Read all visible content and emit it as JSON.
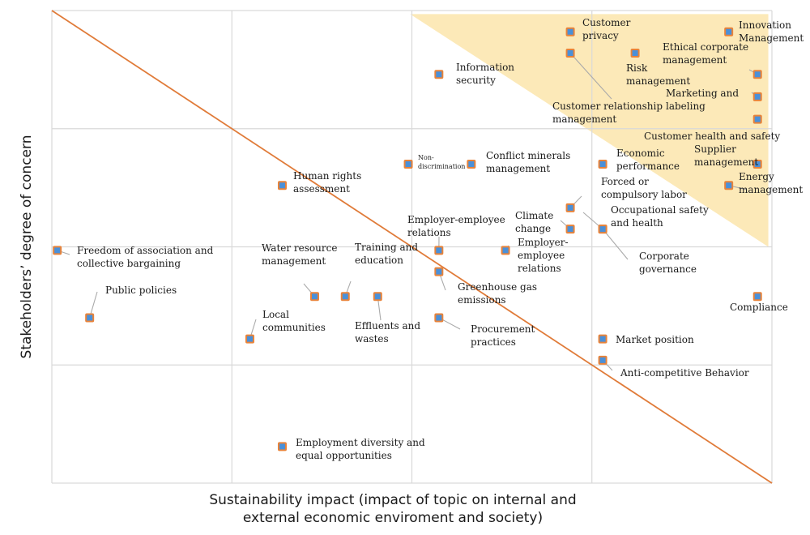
{
  "chart_data": {
    "type": "scatter",
    "title": "",
    "xlabel": [
      "Sustainability impact (impact of topic on internal and",
      "external economic enviroment and society)"
    ],
    "ylabel": "Stakeholders’ degree of concern",
    "xlim": [
      0,
      4
    ],
    "ylim": [
      0,
      4
    ],
    "grid": true,
    "trend_line": [
      [
        0,
        4
      ],
      [
        4,
        0
      ]
    ],
    "colors": {
      "marker_fill": "#4a90d9",
      "marker_border": "#e8833a",
      "trend_line": "#e07b39",
      "highlight": "#fce9b8",
      "grid": "#d9d9d9",
      "leader": "#aaaaaa"
    },
    "highlight_region": [
      [
        1.99,
        3.97
      ],
      [
        3.98,
        3.97
      ],
      [
        3.98,
        2.0
      ]
    ],
    "points": [
      {
        "label": "Customer privacy",
        "x": 2.88,
        "y": 3.82
      },
      {
        "label": "Innovation Management",
        "x": 3.76,
        "y": 3.82
      },
      {
        "label": "Ethical corporate management",
        "x": 3.92,
        "y": 3.46
      },
      {
        "label": "Risk management",
        "x": 3.24,
        "y": 3.64
      },
      {
        "label": "Customer relationship management",
        "x": 2.88,
        "y": 3.64
      },
      {
        "label": "Information security",
        "x": 2.15,
        "y": 3.46
      },
      {
        "label": "Marketing and labeling",
        "x": 3.92,
        "y": 3.27
      },
      {
        "label": "Customer health and safety",
        "x": 3.92,
        "y": 3.08
      },
      {
        "label": "Supplier management",
        "x": 3.92,
        "y": 2.7
      },
      {
        "label": "Energy management",
        "x": 3.76,
        "y": 2.52
      },
      {
        "label": "Non-discrimination",
        "x": 1.98,
        "y": 2.7
      },
      {
        "label": "Conflict minerals management",
        "x": 2.33,
        "y": 2.7
      },
      {
        "label": "Economic performance",
        "x": 3.06,
        "y": 2.7
      },
      {
        "label": "Human rights assessment",
        "x": 1.28,
        "y": 2.52
      },
      {
        "label": "Forced or compulsory labor",
        "x": 2.88,
        "y": 2.33
      },
      {
        "label": "Climate change",
        "x": 2.88,
        "y": 2.15
      },
      {
        "label": "Occupational safety and health",
        "x": 3.06,
        "y": 2.15
      },
      {
        "label": "Corporate governance",
        "x": 3.06,
        "y": 2.15
      },
      {
        "label": "Freedom of association and collective bargaining",
        "x": 0.03,
        "y": 1.97
      },
      {
        "label": "Employer-employee relations",
        "x": 2.15,
        "y": 1.97
      },
      {
        "label": "Employer-employee relations",
        "x": 2.52,
        "y": 1.97
      },
      {
        "label": "Greenhouse gas emissions",
        "x": 2.15,
        "y": 1.79
      },
      {
        "label": "Water resource management",
        "x": 1.46,
        "y": 1.58
      },
      {
        "label": "Training and education",
        "x": 1.63,
        "y": 1.58
      },
      {
        "label": "Effluents and wastes",
        "x": 1.81,
        "y": 1.58
      },
      {
        "label": "Public policies",
        "x": 0.21,
        "y": 1.4
      },
      {
        "label": "Procurement practices",
        "x": 2.15,
        "y": 1.4
      },
      {
        "label": "Compliance",
        "x": 3.92,
        "y": 1.58
      },
      {
        "label": "Local communities",
        "x": 1.1,
        "y": 1.22
      },
      {
        "label": "Market position",
        "x": 3.06,
        "y": 1.22
      },
      {
        "label": "Anti-competitive Behavior",
        "x": 3.06,
        "y": 1.04
      },
      {
        "label": "Employment diversity and equal opportunities",
        "x": 1.28,
        "y": 0.31
      }
    ],
    "labels": [
      {
        "lines": [
          "Customer",
          "privacy"
        ]
      },
      {
        "lines": [
          "Innovation",
          "Management"
        ]
      },
      {
        "lines": [
          "Ethical corporate",
          "management"
        ]
      },
      {
        "lines": [
          "Risk",
          "management"
        ]
      },
      {
        "lines": [
          "Customer relationship",
          "management"
        ]
      },
      {
        "lines": [
          "Information",
          "security"
        ]
      },
      {
        "lines": [
          "Marketing and",
          "labeling"
        ]
      },
      {
        "lines": [
          "Customer health and safety"
        ]
      },
      {
        "lines": [
          "Supplier",
          "management"
        ]
      },
      {
        "lines": [
          "Energy",
          "management"
        ]
      },
      {
        "lines": [
          "Non-",
          "discrimination"
        ]
      },
      {
        "lines": [
          "Conflict minerals",
          "management"
        ]
      },
      {
        "lines": [
          "Economic",
          "performance"
        ]
      },
      {
        "lines": [
          "Human rights",
          "assessment"
        ]
      },
      {
        "lines": [
          "Forced or",
          "compulsory labor"
        ]
      },
      {
        "lines": [
          "Climate",
          "change"
        ]
      },
      {
        "lines": [
          "Occupational safety",
          "and health"
        ]
      },
      {
        "lines": [
          "Corporate",
          "governance"
        ]
      },
      {
        "lines": [
          "Freedom of association and",
          "collective bargaining"
        ]
      },
      {
        "lines": [
          "Employer-employee",
          "relations"
        ]
      },
      {
        "lines": [
          "Employer-",
          "employee",
          "relations"
        ]
      },
      {
        "lines": [
          "Greenhouse gas",
          "emissions"
        ]
      },
      {
        "lines": [
          "Water resource",
          "management"
        ]
      },
      {
        "lines": [
          "Training and",
          "education"
        ]
      },
      {
        "lines": [
          "Effluents and",
          "wastes"
        ]
      },
      {
        "lines": [
          "Public policies"
        ]
      },
      {
        "lines": [
          "Procurement",
          "practices"
        ]
      },
      {
        "lines": [
          "Compliance"
        ]
      },
      {
        "lines": [
          "Local",
          "communities"
        ]
      },
      {
        "lines": [
          "Market position"
        ]
      },
      {
        "lines": [
          "Anti-competitive Behavior"
        ]
      },
      {
        "lines": [
          "Employment diversity and",
          "equal opportunities"
        ]
      }
    ]
  }
}
